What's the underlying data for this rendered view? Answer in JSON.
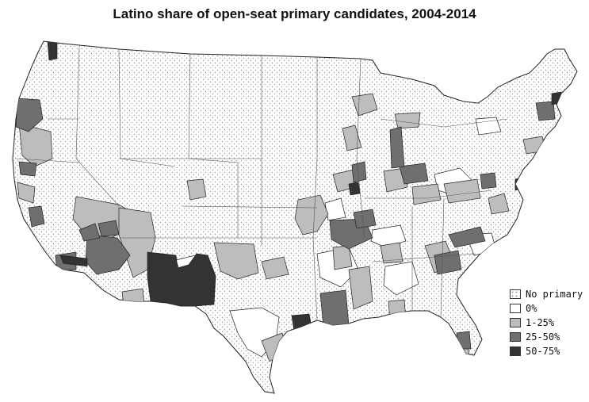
{
  "title": "Latino share of open-seat primary candidates, 2004-2014",
  "legend": {
    "items": [
      {
        "label": "No primary",
        "fill": "dots"
      },
      {
        "label": "0%",
        "fill": "#ffffff"
      },
      {
        "label": "1-25%",
        "fill": "#bdbdbd"
      },
      {
        "label": "25-50%",
        "fill": "#6f6f6f"
      },
      {
        "label": "50-75%",
        "fill": "#333333"
      }
    ]
  },
  "colors": {
    "none": "#ffffff",
    "low": "#bdbdbd",
    "mid": "#6f6f6f",
    "high": "#333333",
    "dot": "#9a9a9a",
    "border": "#222222"
  }
}
